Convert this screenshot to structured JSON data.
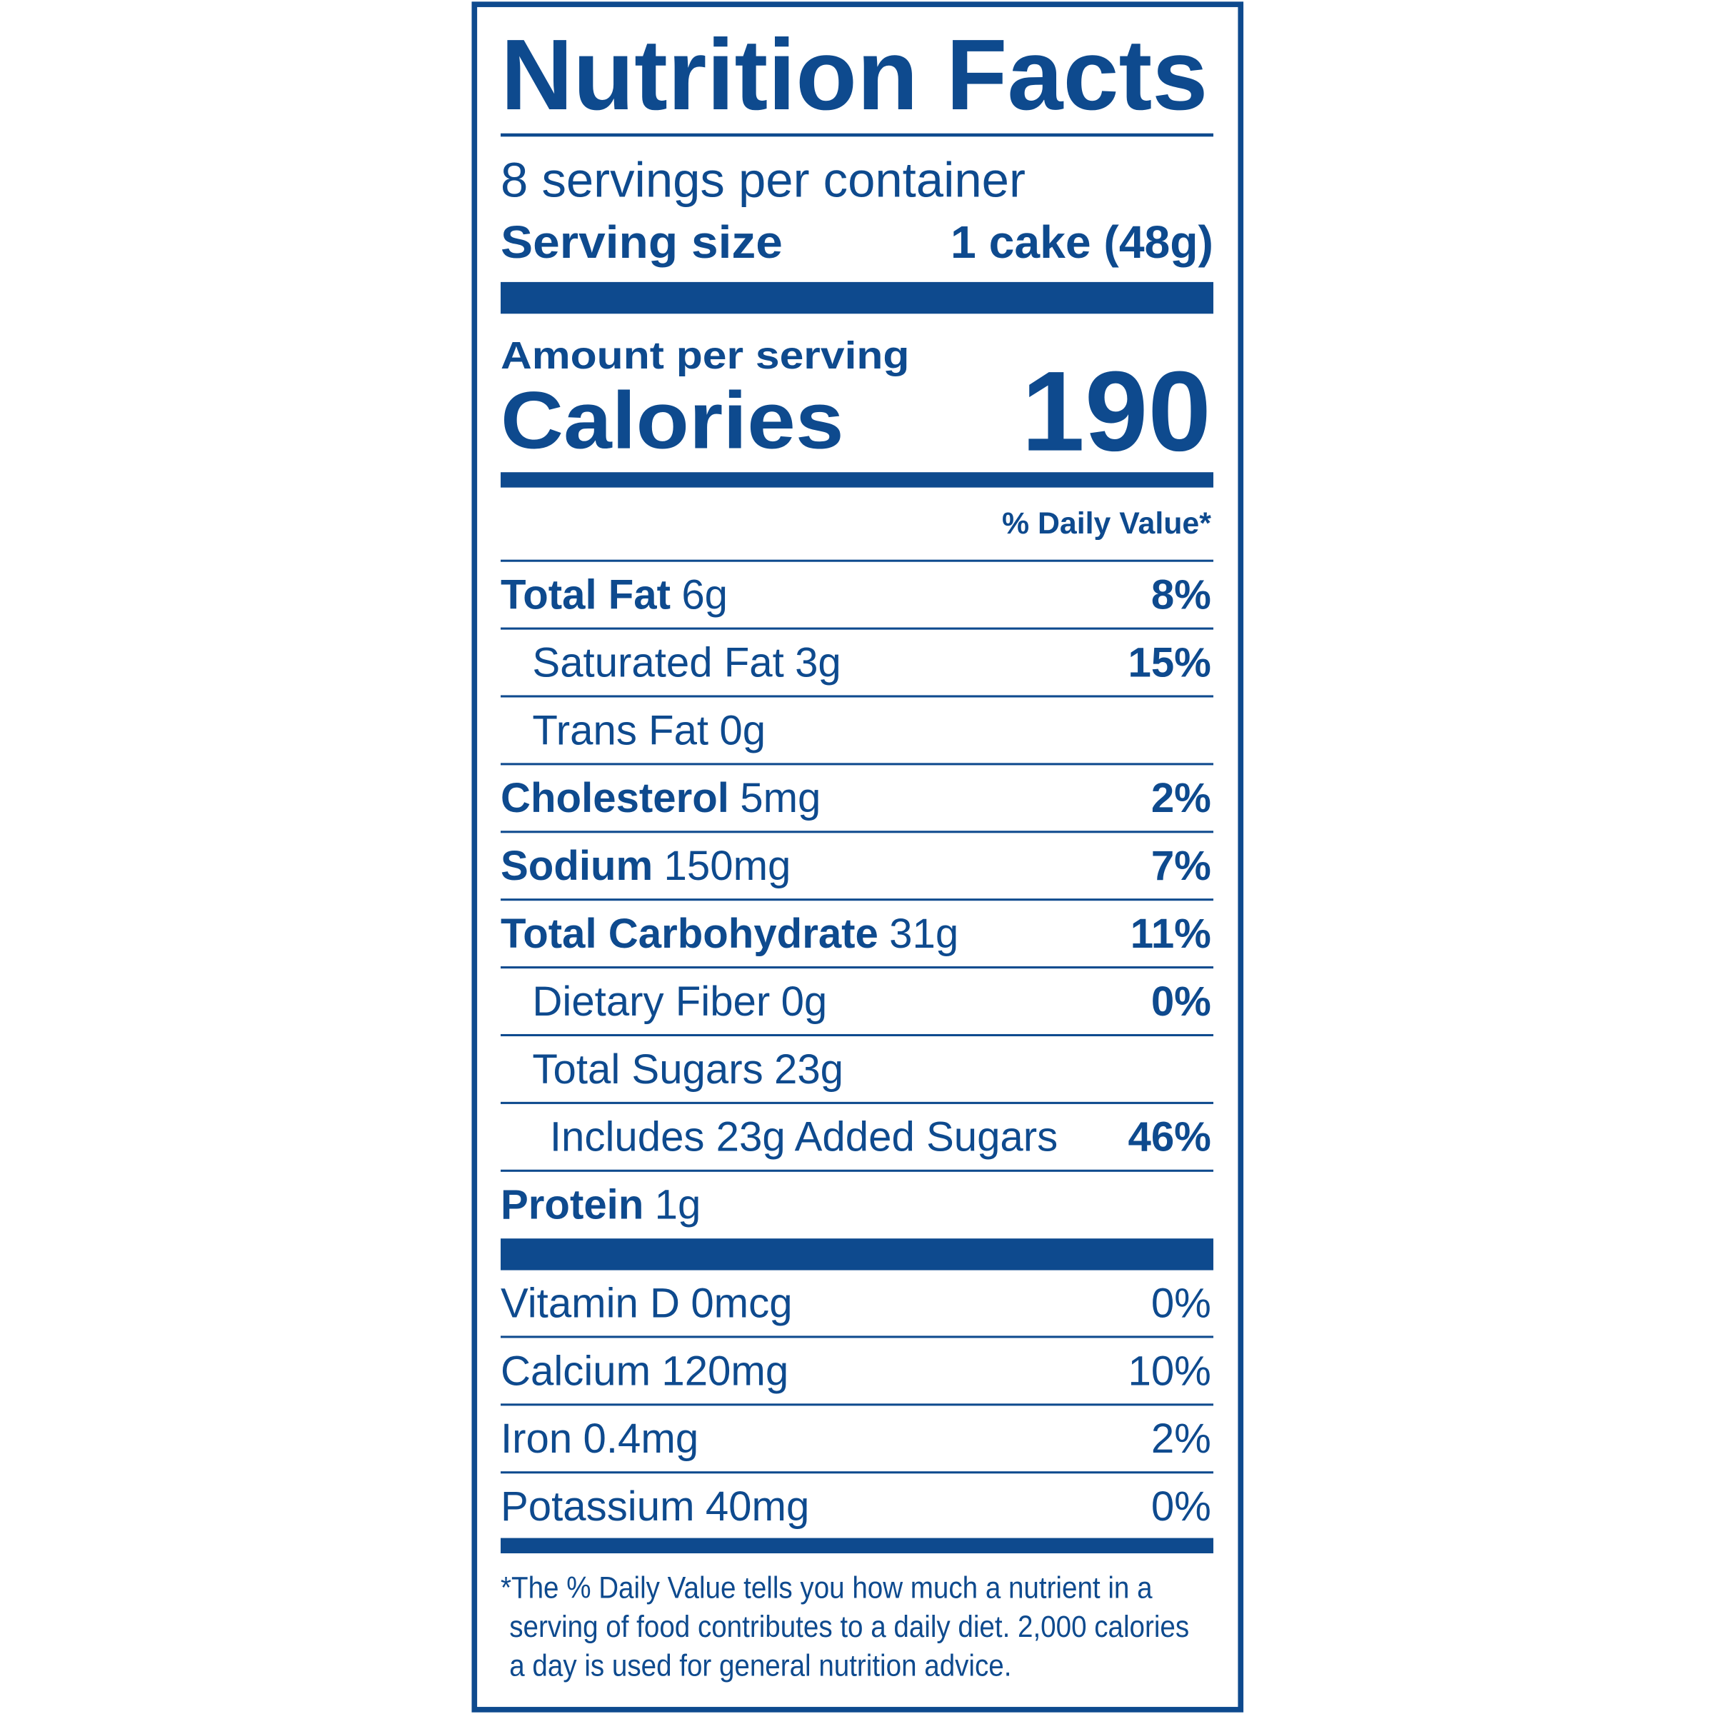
{
  "header": {
    "title": "Nutrition Facts",
    "servings_per_container": "8 servings per container",
    "serving_size_label": "Serving size",
    "serving_size_value": "1 cake (48g)"
  },
  "calories": {
    "amount_label": "Amount per serving",
    "label": "Calories",
    "value": "190"
  },
  "daily_value_header": "% Daily Value*",
  "nutrients": [
    {
      "name": "Total Fat",
      "amount": "6g",
      "daily_value": "8%"
    },
    {
      "name": "Saturated Fat",
      "amount": "3g",
      "daily_value": "15%"
    },
    {
      "name": "Trans Fat",
      "amount": "0g"
    },
    {
      "name": "Cholesterol",
      "amount": "5mg",
      "daily_value": "2%"
    },
    {
      "name": "Sodium",
      "amount": "150mg",
      "daily_value": "7%"
    },
    {
      "name": "Total Carbohydrate",
      "amount": "31g",
      "daily_value": "11%"
    },
    {
      "name": "Dietary Fiber",
      "amount": "0g",
      "daily_value": "0%"
    },
    {
      "name": "Total Sugars",
      "amount": "23g"
    },
    {
      "name": "Includes 23g Added Sugars",
      "daily_value": "46%"
    },
    {
      "name": "Protein",
      "amount": "1g"
    }
  ],
  "vitamins": [
    {
      "name": "Vitamin D",
      "amount": "0mcg",
      "daily_value": "0%"
    },
    {
      "name": "Calcium",
      "amount": "120mg",
      "daily_value": "10%"
    },
    {
      "name": "Iron",
      "amount": "0.4mg",
      "daily_value": "2%"
    },
    {
      "name": "Potassium",
      "amount": "40mg",
      "daily_value": "0%"
    }
  ],
  "footnote": [
    "*The % Daily Value tells you how much a nutrient in a",
    "serving of food contributes to a daily diet. 2,000 calories",
    "a day is used for general nutrition advice."
  ]
}
